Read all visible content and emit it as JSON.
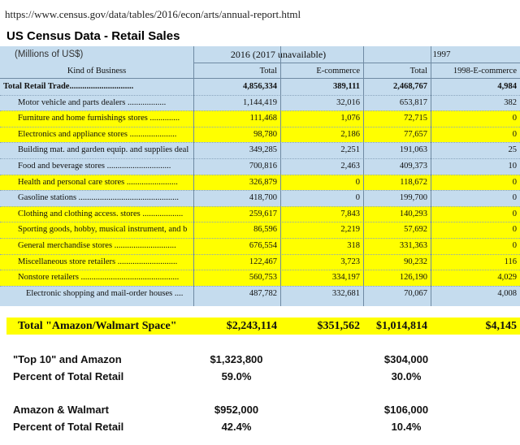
{
  "url": "https://www.census.gov/data/tables/2016/econ/arts/annual-report.html",
  "title": "US Census Data - Retail Sales",
  "units": "(Millions of US$)",
  "table": {
    "groups": [
      "2016  (2017 unavailable)",
      "1997"
    ],
    "header": [
      "Kind of Business",
      "Total",
      "E-commerce",
      "Total",
      "1998-E-commerce"
    ],
    "rows": [
      {
        "cells": [
          "Total Retail Trade..............................",
          "4,856,334",
          "389,111",
          "2,468,767",
          "4,984"
        ],
        "bold": true
      },
      {
        "cells": [
          "Motor vehicle and parts dealers ..................",
          "1,144,419",
          "32,016",
          "653,817",
          "382"
        ]
      },
      {
        "cells": [
          "Furniture and home furnishings stores ..............",
          "111,468",
          "1,076",
          "72,715",
          "0"
        ],
        "highlight": true
      },
      {
        "cells": [
          "Electronics and appliance stores ......................",
          "98,780",
          "2,186",
          "77,657",
          "0"
        ],
        "highlight": true
      },
      {
        "cells": [
          "Building mat. and garden equip. and supplies deal",
          "349,285",
          "2,251",
          "191,063",
          "25"
        ]
      },
      {
        "cells": [
          "Food and beverage stores ..............................",
          "700,816",
          "2,463",
          "409,373",
          "10"
        ]
      },
      {
        "cells": [
          "Health and personal care stores ........................",
          "326,879",
          "0",
          "118,672",
          "0"
        ],
        "highlight": true
      },
      {
        "cells": [
          "Gasoline stations ...............................................",
          "418,700",
          "0",
          "199,700",
          "0"
        ]
      },
      {
        "cells": [
          "Clothing and clothing access. stores ...................",
          "259,617",
          "7,843",
          "140,293",
          "0"
        ],
        "highlight": true
      },
      {
        "cells": [
          "Sporting goods, hobby, musical instrument, and b",
          "86,596",
          "2,219",
          "57,692",
          "0"
        ],
        "highlight": true
      },
      {
        "cells": [
          "General merchandise stores .............................",
          "676,554",
          "318",
          "331,363",
          "0"
        ],
        "highlight": true
      },
      {
        "cells": [
          "Miscellaneous store retailers ............................",
          "122,467",
          "3,723",
          "90,232",
          "116"
        ],
        "highlight": true
      },
      {
        "cells": [
          "Nonstore retailers ..............................................",
          "560,753",
          "334,197",
          "126,190",
          "4,029"
        ],
        "highlight": true
      },
      {
        "cells": [
          "Electronic shopping and mail-order houses ....",
          "487,782",
          "332,681",
          "70,067",
          "4,008"
        ]
      }
    ]
  },
  "space_total": {
    "cells": [
      "Total \"Amazon/Walmart Space\"",
      "$2,243,114",
      "$351,562",
      "$1,014,814",
      "$4,145"
    ]
  },
  "summary": [
    {
      "label": "\"Top 10\" and Amazon",
      "values": [
        "$1,323,800",
        "$304,000"
      ]
    },
    {
      "label": "Percent of Total Retail",
      "values": [
        "59.0%",
        "30.0%"
      ]
    },
    {
      "label": "Amazon & Walmart",
      "values": [
        "$952,000",
        "$106,000"
      ]
    },
    {
      "label": "Percent of Total Retail",
      "values": [
        "42.4%",
        "10.4%"
      ]
    }
  ]
}
